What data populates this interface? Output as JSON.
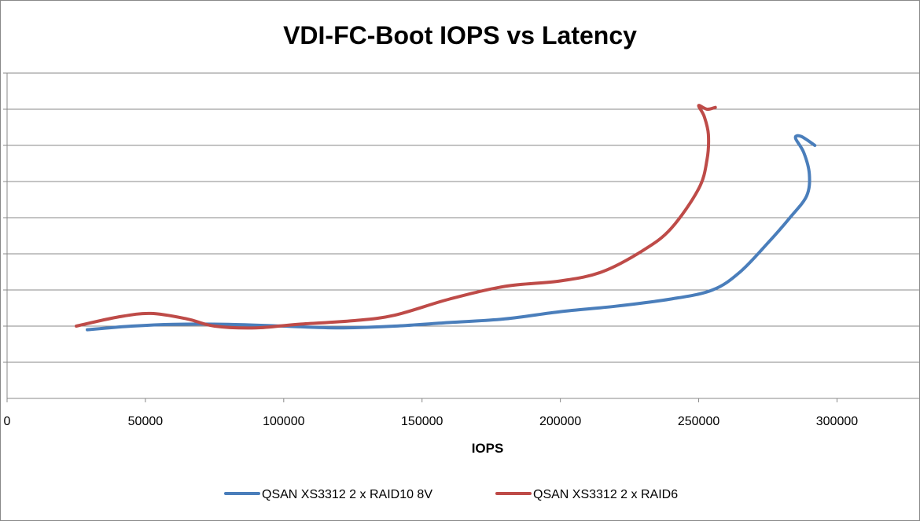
{
  "chart_data": {
    "type": "line",
    "title": "VDI-FC-Boot IOPS vs Latency",
    "xlabel": "IOPS",
    "ylabel": "",
    "xlim": [
      0,
      330000
    ],
    "ylim": [
      0,
      9
    ],
    "x_ticks": [
      "0",
      "50000",
      "100000",
      "150000",
      "200000",
      "250000",
      "300000"
    ],
    "x_tick_values": [
      0,
      50000,
      100000,
      150000,
      200000,
      250000,
      300000
    ],
    "y_gridlines": [
      1,
      2,
      3,
      4,
      5,
      6,
      7,
      8,
      9
    ],
    "grid": true,
    "legend_position": "bottom",
    "series": [
      {
        "name": "QSAN XS3312 2 x RAID10 8V",
        "color": "#4a7ebb",
        "points": [
          [
            29000,
            1.9
          ],
          [
            45000,
            2.0
          ],
          [
            60000,
            2.05
          ],
          [
            80000,
            2.05
          ],
          [
            100000,
            2.0
          ],
          [
            120000,
            1.95
          ],
          [
            140000,
            2.0
          ],
          [
            160000,
            2.1
          ],
          [
            180000,
            2.2
          ],
          [
            200000,
            2.4
          ],
          [
            220000,
            2.55
          ],
          [
            240000,
            2.75
          ],
          [
            255000,
            3.0
          ],
          [
            265000,
            3.5
          ],
          [
            275000,
            4.3
          ],
          [
            283000,
            5.0
          ],
          [
            289000,
            5.6
          ],
          [
            290000,
            6.2
          ],
          [
            288000,
            6.8
          ],
          [
            285000,
            7.2
          ],
          [
            287000,
            7.25
          ],
          [
            292000,
            7.0
          ]
        ]
      },
      {
        "name": "QSAN XS3312 2 x RAID6",
        "color": "#be4b48",
        "points": [
          [
            25000,
            2.0
          ],
          [
            40000,
            2.25
          ],
          [
            52000,
            2.35
          ],
          [
            65000,
            2.2
          ],
          [
            75000,
            2.0
          ],
          [
            90000,
            1.95
          ],
          [
            105000,
            2.05
          ],
          [
            125000,
            2.15
          ],
          [
            140000,
            2.3
          ],
          [
            160000,
            2.75
          ],
          [
            180000,
            3.1
          ],
          [
            200000,
            3.25
          ],
          [
            215000,
            3.5
          ],
          [
            230000,
            4.1
          ],
          [
            240000,
            4.7
          ],
          [
            250000,
            5.8
          ],
          [
            253000,
            6.6
          ],
          [
            253500,
            7.3
          ],
          [
            252000,
            7.8
          ],
          [
            250000,
            8.1
          ],
          [
            253000,
            8.0
          ],
          [
            256000,
            8.05
          ]
        ]
      }
    ]
  }
}
